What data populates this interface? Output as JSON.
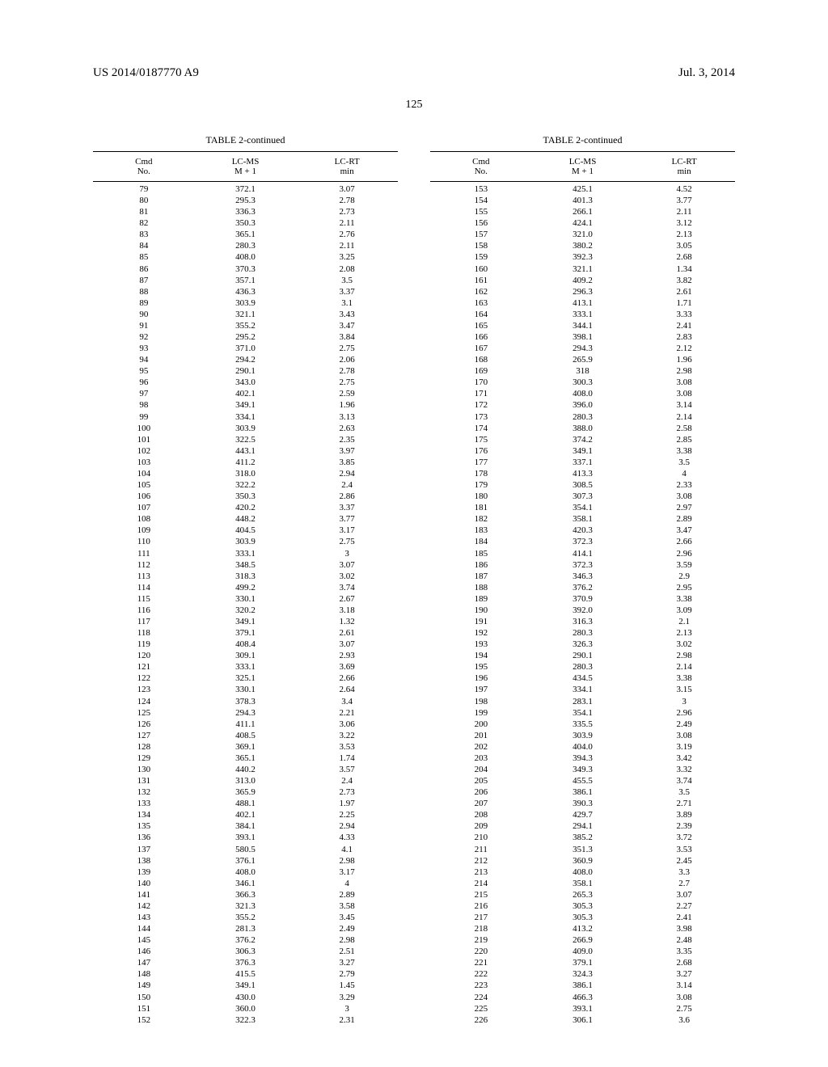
{
  "header": {
    "pub_number": "US 2014/0187770 A9",
    "pub_date": "Jul. 3, 2014",
    "page_number": "125"
  },
  "table_title": "TABLE 2-continued",
  "columns": {
    "cmd_no_1": "Cmd",
    "cmd_no_2": "No.",
    "lcms_1": "LC-MS",
    "lcms_2": "M + 1",
    "lcrt_1": "LC-RT",
    "lcrt_2": "min"
  },
  "left": [
    {
      "n": "79",
      "m": "372.1",
      "r": "3.07"
    },
    {
      "n": "80",
      "m": "295.3",
      "r": "2.78"
    },
    {
      "n": "81",
      "m": "336.3",
      "r": "2.73"
    },
    {
      "n": "82",
      "m": "350.3",
      "r": "2.11"
    },
    {
      "n": "83",
      "m": "365.1",
      "r": "2.76"
    },
    {
      "n": "84",
      "m": "280.3",
      "r": "2.11"
    },
    {
      "n": "85",
      "m": "408.0",
      "r": "3.25"
    },
    {
      "n": "86",
      "m": "370.3",
      "r": "2.08"
    },
    {
      "n": "87",
      "m": "357.1",
      "r": "3.5"
    },
    {
      "n": "88",
      "m": "436.3",
      "r": "3.37"
    },
    {
      "n": "89",
      "m": "303.9",
      "r": "3.1"
    },
    {
      "n": "90",
      "m": "321.1",
      "r": "3.43"
    },
    {
      "n": "91",
      "m": "355.2",
      "r": "3.47"
    },
    {
      "n": "92",
      "m": "295.2",
      "r": "3.84"
    },
    {
      "n": "93",
      "m": "371.0",
      "r": "2.75"
    },
    {
      "n": "94",
      "m": "294.2",
      "r": "2.06"
    },
    {
      "n": "95",
      "m": "290.1",
      "r": "2.78"
    },
    {
      "n": "96",
      "m": "343.0",
      "r": "2.75"
    },
    {
      "n": "97",
      "m": "402.1",
      "r": "2.59"
    },
    {
      "n": "98",
      "m": "349.1",
      "r": "1.96"
    },
    {
      "n": "99",
      "m": "334.1",
      "r": "3.13"
    },
    {
      "n": "100",
      "m": "303.9",
      "r": "2.63"
    },
    {
      "n": "101",
      "m": "322.5",
      "r": "2.35"
    },
    {
      "n": "102",
      "m": "443.1",
      "r": "3.97"
    },
    {
      "n": "103",
      "m": "411.2",
      "r": "3.85"
    },
    {
      "n": "104",
      "m": "318.0",
      "r": "2.94"
    },
    {
      "n": "105",
      "m": "322.2",
      "r": "2.4"
    },
    {
      "n": "106",
      "m": "350.3",
      "r": "2.86"
    },
    {
      "n": "107",
      "m": "420.2",
      "r": "3.37"
    },
    {
      "n": "108",
      "m": "448.2",
      "r": "3.77"
    },
    {
      "n": "109",
      "m": "404.5",
      "r": "3.17"
    },
    {
      "n": "110",
      "m": "303.9",
      "r": "2.75"
    },
    {
      "n": "111",
      "m": "333.1",
      "r": "3"
    },
    {
      "n": "112",
      "m": "348.5",
      "r": "3.07"
    },
    {
      "n": "113",
      "m": "318.3",
      "r": "3.02"
    },
    {
      "n": "114",
      "m": "499.2",
      "r": "3.74"
    },
    {
      "n": "115",
      "m": "330.1",
      "r": "2.67"
    },
    {
      "n": "116",
      "m": "320.2",
      "r": "3.18"
    },
    {
      "n": "117",
      "m": "349.1",
      "r": "1.32"
    },
    {
      "n": "118",
      "m": "379.1",
      "r": "2.61"
    },
    {
      "n": "119",
      "m": "408.4",
      "r": "3.07"
    },
    {
      "n": "120",
      "m": "309.1",
      "r": "2.93"
    },
    {
      "n": "121",
      "m": "333.1",
      "r": "3.69"
    },
    {
      "n": "122",
      "m": "325.1",
      "r": "2.66"
    },
    {
      "n": "123",
      "m": "330.1",
      "r": "2.64"
    },
    {
      "n": "124",
      "m": "378.3",
      "r": "3.4"
    },
    {
      "n": "125",
      "m": "294.3",
      "r": "2.21"
    },
    {
      "n": "126",
      "m": "411.1",
      "r": "3.06"
    },
    {
      "n": "127",
      "m": "408.5",
      "r": "3.22"
    },
    {
      "n": "128",
      "m": "369.1",
      "r": "3.53"
    },
    {
      "n": "129",
      "m": "365.1",
      "r": "1.74"
    },
    {
      "n": "130",
      "m": "440.2",
      "r": "3.57"
    },
    {
      "n": "131",
      "m": "313.0",
      "r": "2.4"
    },
    {
      "n": "132",
      "m": "365.9",
      "r": "2.73"
    },
    {
      "n": "133",
      "m": "488.1",
      "r": "1.97"
    },
    {
      "n": "134",
      "m": "402.1",
      "r": "2.25"
    },
    {
      "n": "135",
      "m": "384.1",
      "r": "2.94"
    },
    {
      "n": "136",
      "m": "393.1",
      "r": "4.33"
    },
    {
      "n": "137",
      "m": "580.5",
      "r": "4.1"
    },
    {
      "n": "138",
      "m": "376.1",
      "r": "2.98"
    },
    {
      "n": "139",
      "m": "408.0",
      "r": "3.17"
    },
    {
      "n": "140",
      "m": "346.1",
      "r": "4"
    },
    {
      "n": "141",
      "m": "366.3",
      "r": "2.89"
    },
    {
      "n": "142",
      "m": "321.3",
      "r": "3.58"
    },
    {
      "n": "143",
      "m": "355.2",
      "r": "3.45"
    },
    {
      "n": "144",
      "m": "281.3",
      "r": "2.49"
    },
    {
      "n": "145",
      "m": "376.2",
      "r": "2.98"
    },
    {
      "n": "146",
      "m": "306.3",
      "r": "2.51"
    },
    {
      "n": "147",
      "m": "376.3",
      "r": "3.27"
    },
    {
      "n": "148",
      "m": "415.5",
      "r": "2.79"
    },
    {
      "n": "149",
      "m": "349.1",
      "r": "1.45"
    },
    {
      "n": "150",
      "m": "430.0",
      "r": "3.29"
    },
    {
      "n": "151",
      "m": "360.0",
      "r": "3"
    },
    {
      "n": "152",
      "m": "322.3",
      "r": "2.31"
    }
  ],
  "right": [
    {
      "n": "153",
      "m": "425.1",
      "r": "4.52"
    },
    {
      "n": "154",
      "m": "401.3",
      "r": "3.77"
    },
    {
      "n": "155",
      "m": "266.1",
      "r": "2.11"
    },
    {
      "n": "156",
      "m": "424.1",
      "r": "3.12"
    },
    {
      "n": "157",
      "m": "321.0",
      "r": "2.13"
    },
    {
      "n": "158",
      "m": "380.2",
      "r": "3.05"
    },
    {
      "n": "159",
      "m": "392.3",
      "r": "2.68"
    },
    {
      "n": "160",
      "m": "321.1",
      "r": "1.34"
    },
    {
      "n": "161",
      "m": "409.2",
      "r": "3.82"
    },
    {
      "n": "162",
      "m": "296.3",
      "r": "2.61"
    },
    {
      "n": "163",
      "m": "413.1",
      "r": "1.71"
    },
    {
      "n": "164",
      "m": "333.1",
      "r": "3.33"
    },
    {
      "n": "165",
      "m": "344.1",
      "r": "2.41"
    },
    {
      "n": "166",
      "m": "398.1",
      "r": "2.83"
    },
    {
      "n": "167",
      "m": "294.3",
      "r": "2.12"
    },
    {
      "n": "168",
      "m": "265.9",
      "r": "1.96"
    },
    {
      "n": "169",
      "m": "318",
      "r": "2.98"
    },
    {
      "n": "170",
      "m": "300.3",
      "r": "3.08"
    },
    {
      "n": "171",
      "m": "408.0",
      "r": "3.08"
    },
    {
      "n": "172",
      "m": "396.0",
      "r": "3.14"
    },
    {
      "n": "173",
      "m": "280.3",
      "r": "2.14"
    },
    {
      "n": "174",
      "m": "388.0",
      "r": "2.58"
    },
    {
      "n": "175",
      "m": "374.2",
      "r": "2.85"
    },
    {
      "n": "176",
      "m": "349.1",
      "r": "3.38"
    },
    {
      "n": "177",
      "m": "337.1",
      "r": "3.5"
    },
    {
      "n": "178",
      "m": "413.3",
      "r": "4"
    },
    {
      "n": "179",
      "m": "308.5",
      "r": "2.33"
    },
    {
      "n": "180",
      "m": "307.3",
      "r": "3.08"
    },
    {
      "n": "181",
      "m": "354.1",
      "r": "2.97"
    },
    {
      "n": "182",
      "m": "358.1",
      "r": "2.89"
    },
    {
      "n": "183",
      "m": "420.3",
      "r": "3.47"
    },
    {
      "n": "184",
      "m": "372.3",
      "r": "2.66"
    },
    {
      "n": "185",
      "m": "414.1",
      "r": "2.96"
    },
    {
      "n": "186",
      "m": "372.3",
      "r": "3.59"
    },
    {
      "n": "187",
      "m": "346.3",
      "r": "2.9"
    },
    {
      "n": "188",
      "m": "376.2",
      "r": "2.95"
    },
    {
      "n": "189",
      "m": "370.9",
      "r": "3.38"
    },
    {
      "n": "190",
      "m": "392.0",
      "r": "3.09"
    },
    {
      "n": "191",
      "m": "316.3",
      "r": "2.1"
    },
    {
      "n": "192",
      "m": "280.3",
      "r": "2.13"
    },
    {
      "n": "193",
      "m": "326.3",
      "r": "3.02"
    },
    {
      "n": "194",
      "m": "290.1",
      "r": "2.98"
    },
    {
      "n": "195",
      "m": "280.3",
      "r": "2.14"
    },
    {
      "n": "196",
      "m": "434.5",
      "r": "3.38"
    },
    {
      "n": "197",
      "m": "334.1",
      "r": "3.15"
    },
    {
      "n": "198",
      "m": "283.1",
      "r": "3"
    },
    {
      "n": "199",
      "m": "354.1",
      "r": "2.96"
    },
    {
      "n": "200",
      "m": "335.5",
      "r": "2.49"
    },
    {
      "n": "201",
      "m": "303.9",
      "r": "3.08"
    },
    {
      "n": "202",
      "m": "404.0",
      "r": "3.19"
    },
    {
      "n": "203",
      "m": "394.3",
      "r": "3.42"
    },
    {
      "n": "204",
      "m": "349.3",
      "r": "3.32"
    },
    {
      "n": "205",
      "m": "455.5",
      "r": "3.74"
    },
    {
      "n": "206",
      "m": "386.1",
      "r": "3.5"
    },
    {
      "n": "207",
      "m": "390.3",
      "r": "2.71"
    },
    {
      "n": "208",
      "m": "429.7",
      "r": "3.89"
    },
    {
      "n": "209",
      "m": "294.1",
      "r": "2.39"
    },
    {
      "n": "210",
      "m": "385.2",
      "r": "3.72"
    },
    {
      "n": "211",
      "m": "351.3",
      "r": "3.53"
    },
    {
      "n": "212",
      "m": "360.9",
      "r": "2.45"
    },
    {
      "n": "213",
      "m": "408.0",
      "r": "3.3"
    },
    {
      "n": "214",
      "m": "358.1",
      "r": "2.7"
    },
    {
      "n": "215",
      "m": "265.3",
      "r": "3.07"
    },
    {
      "n": "216",
      "m": "305.3",
      "r": "2.27"
    },
    {
      "n": "217",
      "m": "305.3",
      "r": "2.41"
    },
    {
      "n": "218",
      "m": "413.2",
      "r": "3.98"
    },
    {
      "n": "219",
      "m": "266.9",
      "r": "2.48"
    },
    {
      "n": "220",
      "m": "409.0",
      "r": "3.35"
    },
    {
      "n": "221",
      "m": "379.1",
      "r": "2.68"
    },
    {
      "n": "222",
      "m": "324.3",
      "r": "3.27"
    },
    {
      "n": "223",
      "m": "386.1",
      "r": "3.14"
    },
    {
      "n": "224",
      "m": "466.3",
      "r": "3.08"
    },
    {
      "n": "225",
      "m": "393.1",
      "r": "2.75"
    },
    {
      "n": "226",
      "m": "306.1",
      "r": "3.6"
    }
  ]
}
